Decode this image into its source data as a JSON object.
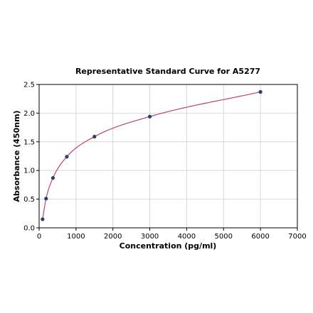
{
  "chart_data": {
    "type": "scatter",
    "title": "Representative Standard Curve for A5277",
    "xlabel": "Concentration (pg/ml)",
    "ylabel": "Absorbance (450nm)",
    "xlim": [
      0,
      7000
    ],
    "ylim": [
      0,
      2.5
    ],
    "xticks": [
      0,
      1000,
      2000,
      3000,
      4000,
      5000,
      6000,
      7000
    ],
    "yticks": [
      0.0,
      0.5,
      1.0,
      1.5,
      2.0,
      2.5
    ],
    "xtick_labels": [
      "0",
      "1000",
      "2000",
      "3000",
      "4000",
      "5000",
      "6000",
      "7000"
    ],
    "ytick_labels": [
      "0.0",
      "0.5",
      "1.0",
      "1.5",
      "2.0",
      "2.5"
    ],
    "grid": true,
    "series": [
      {
        "x": [
          94,
          188,
          375,
          750,
          1500,
          3000,
          6000
        ],
        "y": [
          0.15,
          0.51,
          0.87,
          1.24,
          1.59,
          1.94,
          2.37
        ],
        "marker_color": "#2e3f66",
        "fit_line_color": "#b5486d"
      }
    ]
  }
}
